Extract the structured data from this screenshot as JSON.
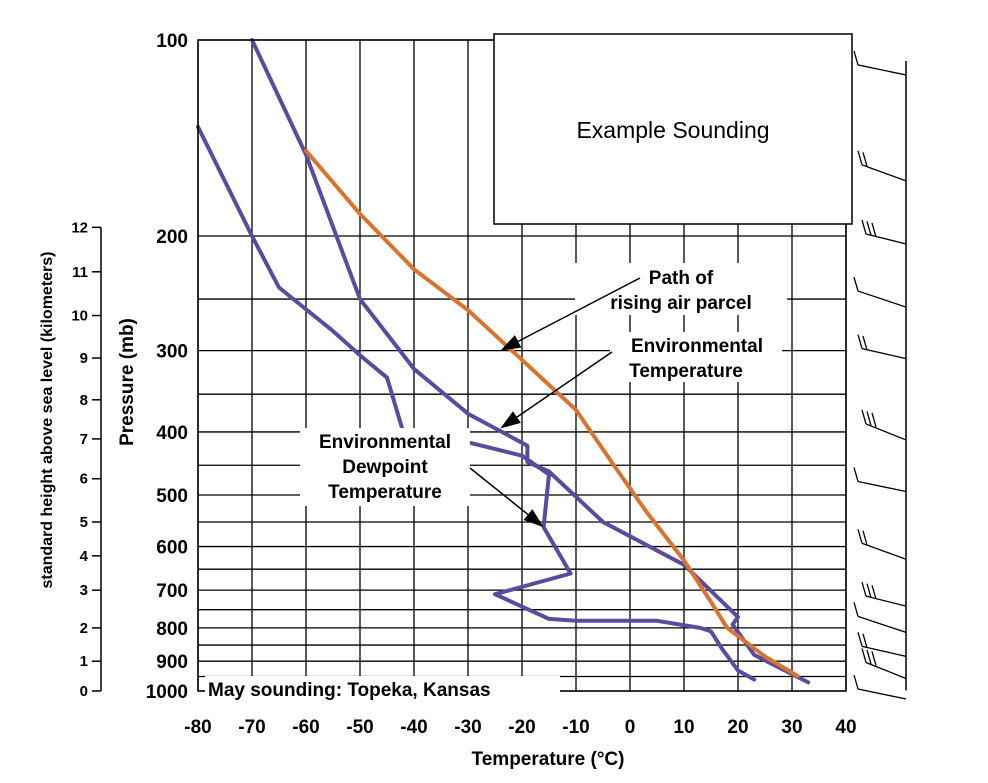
{
  "chart_data": {
    "type": "line",
    "title": "Example Sounding",
    "caption": "May sounding: Topeka, Kansas",
    "xlabel": "Temperature (°C)",
    "ylabel": "Pressure (mb)",
    "y2label": "standard height above sea level (kilometers)",
    "xlim": [
      -80,
      40
    ],
    "ylim": [
      100,
      1000
    ],
    "yscale": "log",
    "grid": true,
    "x_ticks": [
      -80,
      -70,
      -60,
      -50,
      -40,
      -30,
      -20,
      -10,
      0,
      10,
      20,
      30,
      40
    ],
    "pressure_ticks": [
      {
        "p": 100,
        "label": "100"
      },
      {
        "p": 200,
        "label": "200"
      },
      {
        "p": 300,
        "label": "300"
      },
      {
        "p": 400,
        "label": "400"
      },
      {
        "p": 500,
        "label": "500"
      },
      {
        "p": 600,
        "label": "600"
      },
      {
        "p": 700,
        "label": "700"
      },
      {
        "p": 800,
        "label": "800"
      },
      {
        "p": 900,
        "label": "900"
      },
      {
        "p": 1000,
        "label": "1000"
      }
    ],
    "height_ticks": [
      {
        "km": 0,
        "p": 1000,
        "label": "0"
      },
      {
        "km": 1,
        "p": 900,
        "label": "1"
      },
      {
        "km": 2,
        "p": 800,
        "label": "2"
      },
      {
        "km": 3,
        "p": 700,
        "label": "3"
      },
      {
        "km": 4,
        "p": 620,
        "label": "4"
      },
      {
        "km": 5,
        "p": 550,
        "label": "5"
      },
      {
        "km": 6,
        "p": 472,
        "label": "6"
      },
      {
        "km": 7,
        "p": 410,
        "label": "7"
      },
      {
        "km": 8,
        "p": 357,
        "label": "8"
      },
      {
        "km": 9,
        "p": 308,
        "label": "9"
      },
      {
        "km": 10,
        "p": 265,
        "label": "10"
      },
      {
        "km": 11,
        "p": 227,
        "label": "11"
      },
      {
        "km": 12,
        "p": 194,
        "label": "12"
      }
    ],
    "extra_gridlines_p": [
      250,
      350,
      450,
      550,
      650,
      750,
      850,
      950
    ],
    "series": [
      {
        "name": "Environmental Temperature",
        "color": "#5b4a9e",
        "points": [
          {
            "t": -70,
            "p": 100
          },
          {
            "t": -60,
            "p": 150
          },
          {
            "t": -50,
            "p": 250
          },
          {
            "t": -40,
            "p": 320
          },
          {
            "t": -30,
            "p": 375
          },
          {
            "t": -19,
            "p": 420
          },
          {
            "t": -19,
            "p": 445
          },
          {
            "t": -15,
            "p": 460
          },
          {
            "t": -5,
            "p": 550
          },
          {
            "t": 10,
            "p": 640
          },
          {
            "t": 20,
            "p": 770
          },
          {
            "t": 19,
            "p": 790
          },
          {
            "t": 23,
            "p": 880
          },
          {
            "t": 33,
            "p": 970
          }
        ]
      },
      {
        "name": "Environmental Dewpoint Temperature",
        "color": "#5b4a9e",
        "points": [
          {
            "t": -80,
            "p": 136
          },
          {
            "t": -70,
            "p": 200
          },
          {
            "t": -65,
            "p": 240
          },
          {
            "t": -55,
            "p": 280
          },
          {
            "t": -50,
            "p": 305
          },
          {
            "t": -45,
            "p": 330
          },
          {
            "t": -42,
            "p": 400
          },
          {
            "t": -35,
            "p": 405
          },
          {
            "t": -30,
            "p": 415
          },
          {
            "t": -20,
            "p": 435
          },
          {
            "t": -15,
            "p": 465
          },
          {
            "t": -16,
            "p": 560
          },
          {
            "t": -11,
            "p": 660
          },
          {
            "t": -25,
            "p": 710
          },
          {
            "t": -15,
            "p": 775
          },
          {
            "t": -10,
            "p": 780
          },
          {
            "t": 5,
            "p": 780
          },
          {
            "t": 13,
            "p": 800
          },
          {
            "t": 15,
            "p": 810
          },
          {
            "t": 17,
            "p": 860
          },
          {
            "t": 20,
            "p": 930
          },
          {
            "t": 23,
            "p": 960
          }
        ]
      },
      {
        "name": "Path of rising air parcel",
        "color": "#d9732e",
        "points": [
          {
            "t": -60,
            "p": 148
          },
          {
            "t": -50,
            "p": 185
          },
          {
            "t": -40,
            "p": 225
          },
          {
            "t": -30,
            "p": 260
          },
          {
            "t": -20,
            "p": 310
          },
          {
            "t": -10,
            "p": 370
          },
          {
            "t": -3,
            "p": 450
          },
          {
            "t": 3,
            "p": 530
          },
          {
            "t": 10,
            "p": 630
          },
          {
            "t": 15,
            "p": 730
          },
          {
            "t": 18,
            "p": 800
          },
          {
            "t": 25,
            "p": 885
          },
          {
            "t": 31,
            "p": 948
          }
        ]
      }
    ],
    "annotations": [
      {
        "lines": [
          "Path of",
          "rising air parcel"
        ],
        "arrow_to": {
          "t": -24,
          "p": 300
        }
      },
      {
        "lines": [
          "Environmental",
          "Temperature"
        ],
        "arrow_to": {
          "t": -24,
          "p": 395
        }
      },
      {
        "lines": [
          "Environmental",
          "Dewpoint",
          "Temperature"
        ],
        "arrow_to": {
          "t": -16,
          "p": 560
        }
      }
    ],
    "wind_barbs_p": [
      110,
      160,
      200,
      250,
      300,
      400,
      480,
      610,
      720,
      790,
      860,
      930,
      1000
    ]
  }
}
